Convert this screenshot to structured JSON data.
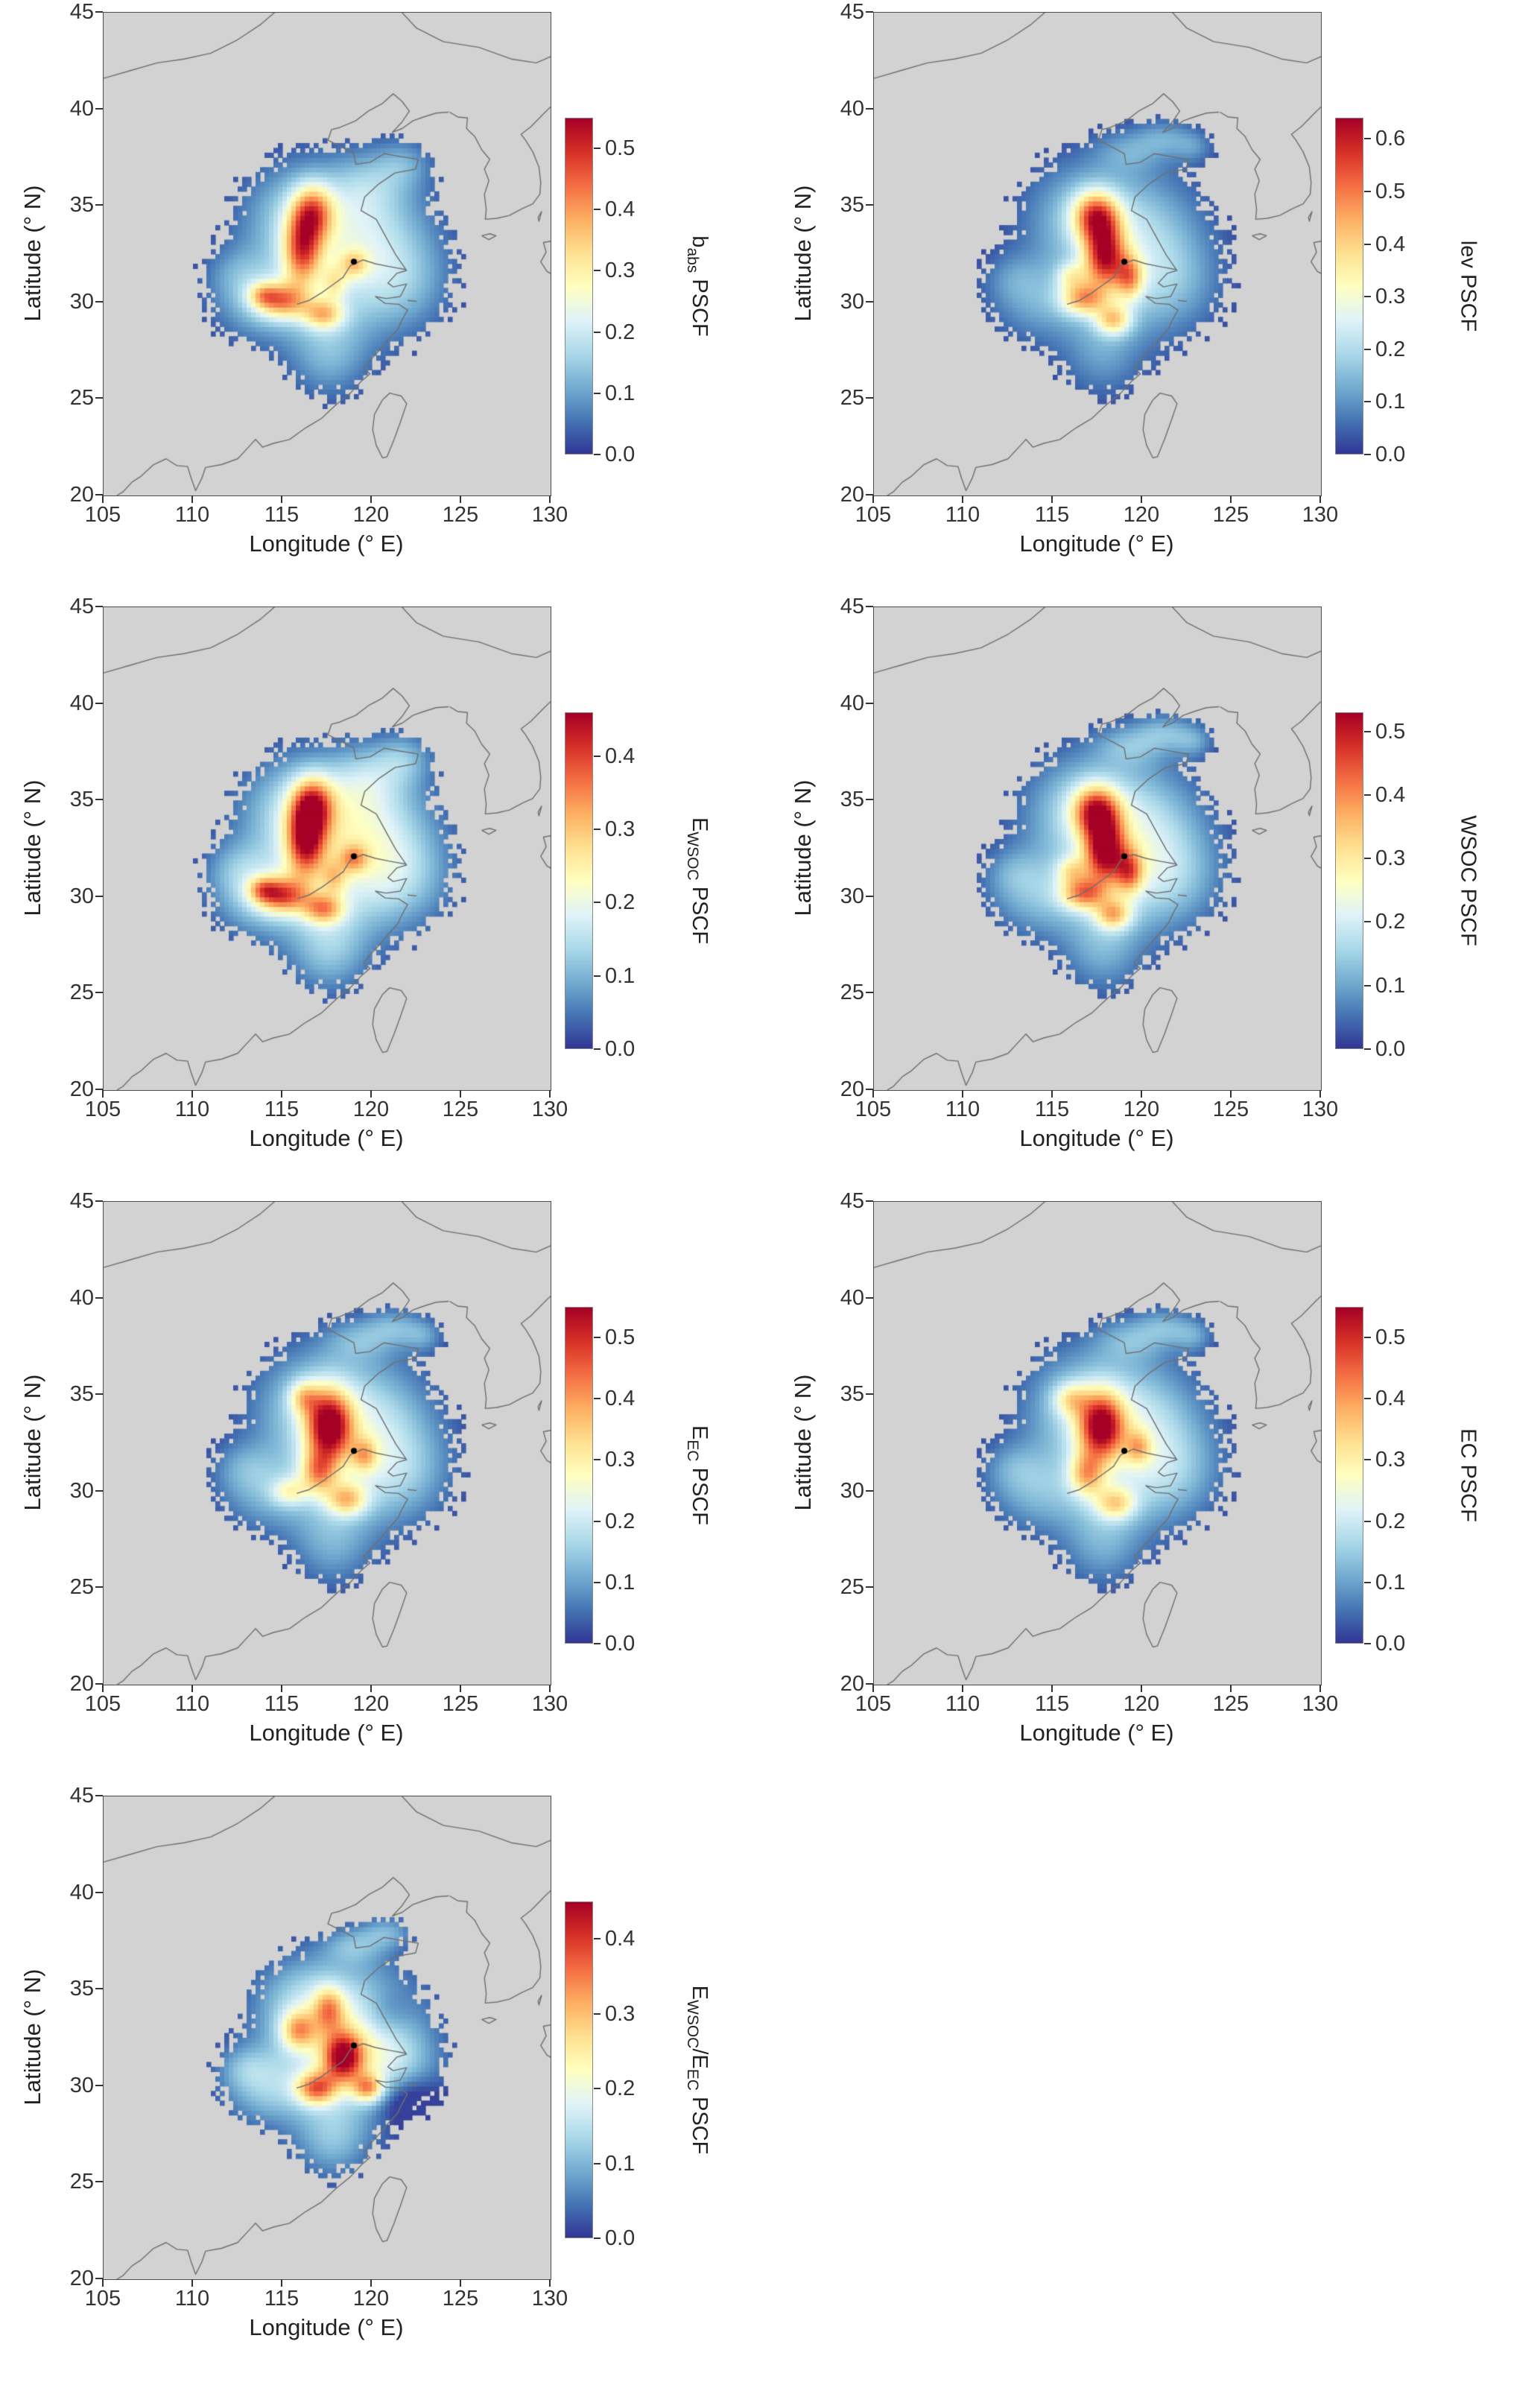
{
  "axes": {
    "xlabel": "Longitude (° E)",
    "ylabel": "Latitude (° N)",
    "xticks": [
      "105",
      "110",
      "115",
      "120",
      "125",
      "130"
    ],
    "yticks": [
      "20",
      "25",
      "30",
      "35",
      "40",
      "45"
    ],
    "xlim": [
      105,
      130
    ],
    "ylim": [
      20,
      45
    ]
  },
  "colors": {
    "land": "#d2d2d2",
    "background": "#ffffff",
    "coast": "#6f6f6f",
    "receptor": "#000000",
    "axis_text": "#333333",
    "colormap": [
      "#313695",
      "#4575b4",
      "#74add1",
      "#abd9e9",
      "#e0f3f8",
      "#ffffbf",
      "#fee090",
      "#fdae61",
      "#f46d43",
      "#d73027",
      "#a50026"
    ]
  },
  "chart_data": [
    {
      "type": "heatmap",
      "id": "babs-pscf",
      "label_parts": [
        {
          "t": "b"
        },
        {
          "t": "abs",
          "sub": true
        },
        {
          "t": " PSCF"
        }
      ],
      "colorbar_ticks": [
        "0.0",
        "0.1",
        "0.2",
        "0.3",
        "0.4",
        "0.5"
      ],
      "vmax": 0.55,
      "mask_threshold": 0.048,
      "receptor": {
        "lon": 119.0,
        "lat": 32.1
      },
      "field": [
        [
          117.8,
          31.8,
          3.3,
          3.0,
          0.13
        ],
        [
          116.0,
          34.6,
          2.2,
          1.9,
          0.11
        ],
        [
          120.3,
          33.8,
          2.3,
          2.2,
          0.09
        ],
        [
          121.6,
          31.0,
          2.0,
          1.7,
          0.08
        ],
        [
          113.7,
          29.9,
          1.9,
          1.3,
          0.09
        ],
        [
          117.6,
          27.3,
          1.5,
          1.6,
          0.09
        ],
        [
          121.8,
          37.2,
          1.1,
          0.9,
          0.08
        ],
        [
          119.8,
          36.2,
          1.4,
          1.2,
          0.07
        ],
        [
          112.5,
          31.5,
          1.3,
          1.0,
          0.06
        ],
        [
          116.7,
          34.7,
          0.8,
          1.0,
          0.26
        ],
        [
          116.1,
          32.7,
          0.75,
          1.3,
          0.3
        ],
        [
          115.0,
          30.1,
          1.0,
          0.65,
          0.26
        ],
        [
          117.3,
          29.4,
          0.8,
          0.55,
          0.22
        ],
        [
          119.0,
          32.0,
          0.55,
          0.5,
          0.15
        ],
        [
          113.9,
          30.4,
          0.6,
          0.45,
          0.14
        ],
        [
          117.9,
          31.0,
          0.5,
          0.6,
          0.12
        ]
      ]
    },
    {
      "type": "heatmap",
      "id": "lev-pscf",
      "label_parts": [
        {
          "t": "lev PSCF"
        }
      ],
      "colorbar_ticks": [
        "0.0",
        "0.1",
        "0.2",
        "0.3",
        "0.4",
        "0.5",
        "0.6"
      ],
      "vmax": 0.64,
      "mask_threshold": 0.048,
      "receptor": {
        "lon": 119.0,
        "lat": 32.1
      },
      "field": [
        [
          118.3,
          31.8,
          3.3,
          3.0,
          0.13
        ],
        [
          116.6,
          34.8,
          2.2,
          1.9,
          0.1
        ],
        [
          120.3,
          33.8,
          2.3,
          2.2,
          0.09
        ],
        [
          121.6,
          31.0,
          2.0,
          1.7,
          0.08
        ],
        [
          114.0,
          29.9,
          1.9,
          1.3,
          0.08
        ],
        [
          117.8,
          27.3,
          1.5,
          1.6,
          0.08
        ],
        [
          119.3,
          37.9,
          1.4,
          0.8,
          0.09
        ],
        [
          121.3,
          38.6,
          1.1,
          0.7,
          0.09
        ],
        [
          122.9,
          38.1,
          0.8,
          0.6,
          0.08
        ],
        [
          112.8,
          31.3,
          1.2,
          0.9,
          0.06
        ],
        [
          117.4,
          34.5,
          0.9,
          0.9,
          0.36
        ],
        [
          117.9,
          32.4,
          0.8,
          1.2,
          0.42
        ],
        [
          116.7,
          30.2,
          0.9,
          0.6,
          0.3
        ],
        [
          118.4,
          29.1,
          0.7,
          0.55,
          0.26
        ],
        [
          119.3,
          31.3,
          0.55,
          0.8,
          0.26
        ],
        [
          116.0,
          31.4,
          0.6,
          0.5,
          0.15
        ]
      ]
    },
    {
      "type": "heatmap",
      "id": "ewsoc-pscf",
      "label_parts": [
        {
          "t": "E"
        },
        {
          "t": "WSOC",
          "sub": true
        },
        {
          "t": " PSCF"
        }
      ],
      "colorbar_ticks": [
        "0.0",
        "0.1",
        "0.2",
        "0.3",
        "0.4"
      ],
      "vmax": 0.46,
      "mask_threshold": 0.048,
      "receptor": {
        "lon": 119.0,
        "lat": 32.1
      },
      "field": [
        [
          117.8,
          31.8,
          3.3,
          3.0,
          0.13
        ],
        [
          116.0,
          34.6,
          2.2,
          1.9,
          0.11
        ],
        [
          120.3,
          33.8,
          2.3,
          2.2,
          0.09
        ],
        [
          121.6,
          31.0,
          2.0,
          1.7,
          0.08
        ],
        [
          113.7,
          29.9,
          1.9,
          1.3,
          0.09
        ],
        [
          117.6,
          27.3,
          1.5,
          1.6,
          0.09
        ],
        [
          121.8,
          37.2,
          1.1,
          0.9,
          0.08
        ],
        [
          119.8,
          36.2,
          1.4,
          1.2,
          0.07
        ],
        [
          112.5,
          31.5,
          1.3,
          1.0,
          0.06
        ],
        [
          116.7,
          34.8,
          0.8,
          1.0,
          0.24
        ],
        [
          116.3,
          32.9,
          0.75,
          1.3,
          0.28
        ],
        [
          115.0,
          30.1,
          1.0,
          0.65,
          0.24
        ],
        [
          117.3,
          29.4,
          0.8,
          0.55,
          0.2
        ],
        [
          119.0,
          32.0,
          0.55,
          0.5,
          0.14
        ],
        [
          113.9,
          30.4,
          0.6,
          0.45,
          0.13
        ],
        [
          117.9,
          31.0,
          0.5,
          0.6,
          0.11
        ]
      ]
    },
    {
      "type": "heatmap",
      "id": "wsoc-pscf",
      "label_parts": [
        {
          "t": "WSOC PSCF"
        }
      ],
      "colorbar_ticks": [
        "0.0",
        "0.1",
        "0.2",
        "0.3",
        "0.4",
        "0.5"
      ],
      "vmax": 0.53,
      "mask_threshold": 0.048,
      "receptor": {
        "lon": 119.0,
        "lat": 32.1
      },
      "field": [
        [
          118.3,
          31.8,
          3.3,
          3.0,
          0.13
        ],
        [
          116.6,
          34.8,
          2.2,
          1.9,
          0.1
        ],
        [
          120.3,
          33.8,
          2.3,
          2.2,
          0.09
        ],
        [
          121.6,
          31.0,
          2.0,
          1.7,
          0.08
        ],
        [
          114.0,
          29.9,
          1.9,
          1.3,
          0.08
        ],
        [
          117.8,
          27.3,
          1.5,
          1.6,
          0.08
        ],
        [
          119.3,
          37.9,
          1.4,
          0.8,
          0.09
        ],
        [
          121.3,
          38.6,
          1.1,
          0.7,
          0.09
        ],
        [
          122.9,
          38.1,
          0.8,
          0.6,
          0.08
        ],
        [
          112.8,
          31.3,
          1.2,
          0.9,
          0.06
        ],
        [
          117.4,
          34.5,
          0.9,
          0.9,
          0.3
        ],
        [
          117.9,
          32.4,
          0.8,
          1.2,
          0.36
        ],
        [
          116.7,
          30.2,
          0.9,
          0.6,
          0.26
        ],
        [
          118.4,
          29.1,
          0.7,
          0.55,
          0.22
        ],
        [
          119.3,
          31.3,
          0.55,
          0.8,
          0.22
        ],
        [
          116.0,
          31.4,
          0.6,
          0.5,
          0.13
        ]
      ]
    },
    {
      "type": "heatmap",
      "id": "eec-pscf",
      "label_parts": [
        {
          "t": "E"
        },
        {
          "t": "EC",
          "sub": true
        },
        {
          "t": " PSCF"
        }
      ],
      "colorbar_ticks": [
        "0.0",
        "0.1",
        "0.2",
        "0.3",
        "0.4",
        "0.5"
      ],
      "vmax": 0.55,
      "mask_threshold": 0.048,
      "receptor": {
        "lon": 119.0,
        "lat": 32.1
      },
      "field": [
        [
          118.3,
          31.8,
          3.3,
          3.0,
          0.13
        ],
        [
          116.6,
          34.8,
          2.2,
          1.9,
          0.1
        ],
        [
          120.3,
          33.8,
          2.3,
          2.2,
          0.09
        ],
        [
          121.6,
          31.0,
          2.0,
          1.7,
          0.08
        ],
        [
          114.0,
          29.9,
          1.9,
          1.3,
          0.08
        ],
        [
          117.8,
          27.3,
          1.5,
          1.6,
          0.08
        ],
        [
          119.3,
          37.9,
          1.4,
          0.8,
          0.09
        ],
        [
          121.3,
          38.6,
          1.1,
          0.7,
          0.09
        ],
        [
          122.9,
          38.1,
          0.8,
          0.6,
          0.08
        ],
        [
          112.8,
          31.3,
          1.2,
          0.9,
          0.06
        ],
        [
          117.6,
          33.4,
          0.9,
          1.3,
          0.4
        ],
        [
          117.0,
          31.0,
          0.7,
          0.8,
          0.22
        ],
        [
          118.6,
          29.6,
          0.8,
          0.6,
          0.22
        ],
        [
          119.6,
          31.9,
          0.5,
          0.6,
          0.16
        ],
        [
          116.2,
          34.9,
          0.6,
          0.6,
          0.16
        ],
        [
          115.4,
          30.0,
          0.7,
          0.5,
          0.14
        ]
      ]
    },
    {
      "type": "heatmap",
      "id": "ec-pscf",
      "label_parts": [
        {
          "t": "EC PSCF"
        }
      ],
      "colorbar_ticks": [
        "0.0",
        "0.1",
        "0.2",
        "0.3",
        "0.4",
        "0.5"
      ],
      "vmax": 0.55,
      "mask_threshold": 0.048,
      "receptor": {
        "lon": 119.0,
        "lat": 32.1
      },
      "field": [
        [
          118.3,
          31.8,
          3.3,
          3.0,
          0.13
        ],
        [
          116.6,
          34.8,
          2.2,
          1.9,
          0.1
        ],
        [
          120.3,
          33.8,
          2.3,
          2.2,
          0.09
        ],
        [
          121.6,
          31.0,
          2.0,
          1.7,
          0.08
        ],
        [
          114.0,
          29.9,
          1.9,
          1.3,
          0.08
        ],
        [
          117.8,
          27.3,
          1.5,
          1.6,
          0.08
        ],
        [
          119.3,
          37.9,
          1.4,
          0.8,
          0.09
        ],
        [
          121.3,
          38.6,
          1.1,
          0.7,
          0.09
        ],
        [
          122.9,
          38.1,
          0.8,
          0.6,
          0.08
        ],
        [
          112.8,
          31.3,
          1.2,
          0.9,
          0.06
        ],
        [
          117.7,
          33.4,
          0.9,
          1.2,
          0.38
        ],
        [
          116.9,
          30.9,
          0.7,
          0.8,
          0.22
        ],
        [
          118.5,
          29.4,
          0.8,
          0.6,
          0.2
        ],
        [
          119.8,
          32.3,
          0.5,
          0.6,
          0.15
        ],
        [
          116.0,
          34.8,
          0.7,
          0.6,
          0.15
        ]
      ]
    },
    {
      "type": "heatmap",
      "id": "ewsoc-eec-ratio-pscf",
      "label_parts": [
        {
          "t": "E"
        },
        {
          "t": "WSOC",
          "sub": true
        },
        {
          "t": "/E"
        },
        {
          "t": "EC",
          "sub": true
        },
        {
          "t": " PSCF"
        }
      ],
      "colorbar_ticks": [
        "0.0",
        "0.1",
        "0.2",
        "0.3",
        "0.4"
      ],
      "vmax": 0.45,
      "mask_threshold": 0.048,
      "receptor": {
        "lon": 119.0,
        "lat": 32.1
      },
      "field": [
        [
          118.0,
          31.5,
          3.0,
          2.7,
          0.13
        ],
        [
          116.4,
          34.4,
          2.0,
          1.7,
          0.1
        ],
        [
          120.2,
          33.5,
          2.0,
          2.0,
          0.08
        ],
        [
          121.3,
          30.8,
          1.8,
          1.5,
          0.08
        ],
        [
          114.0,
          29.8,
          1.7,
          1.2,
          0.08
        ],
        [
          117.8,
          27.2,
          1.4,
          1.4,
          0.08
        ],
        [
          119.0,
          37.3,
          1.2,
          0.7,
          0.08
        ],
        [
          120.9,
          38.0,
          1.0,
          0.6,
          0.08
        ],
        [
          112.9,
          31.0,
          1.1,
          0.8,
          0.06
        ],
        [
          121.9,
          29.3,
          1.3,
          1.0,
          -0.1
        ],
        [
          120.8,
          33.8,
          1.0,
          0.9,
          -0.06
        ],
        [
          118.4,
          31.5,
          0.8,
          0.9,
          0.3
        ],
        [
          116.9,
          29.9,
          0.8,
          0.6,
          0.24
        ],
        [
          119.8,
          29.9,
          0.6,
          0.5,
          0.2
        ],
        [
          115.9,
          32.9,
          0.7,
          0.7,
          0.18
        ],
        [
          117.6,
          34.0,
          0.6,
          0.8,
          0.16
        ]
      ]
    }
  ]
}
